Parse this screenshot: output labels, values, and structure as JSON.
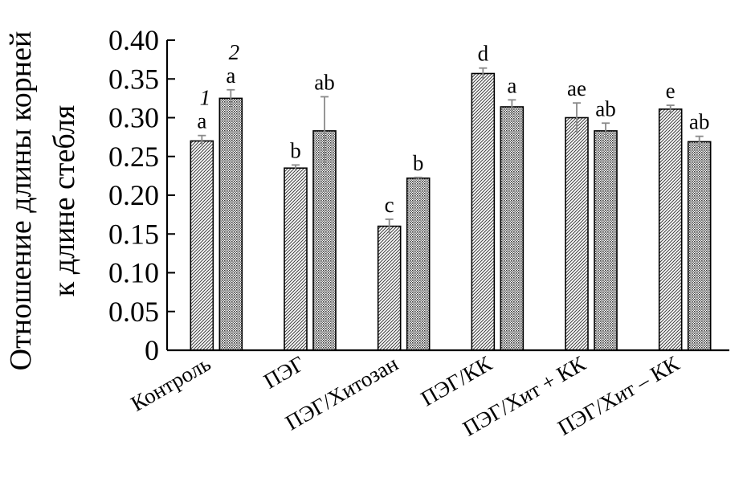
{
  "chart_data": {
    "type": "bar",
    "ylabel": [
      "Отношение длины корней",
      "к длине стебля"
    ],
    "ylim": [
      0,
      0.4
    ],
    "yticks": [
      "0",
      "0.05",
      "0.10",
      "0.15",
      "0.20",
      "0.25",
      "0.30",
      "0.35",
      "0.40"
    ],
    "grid": false,
    "categories": [
      "Контроль",
      "ПЭГ",
      "ПЭГ/Хитозан",
      "ПЭГ/КК",
      "ПЭГ/Хит + КК",
      "ПЭГ/Хит – КК"
    ],
    "series": [
      {
        "name": "1",
        "pattern": "diagonal-hatch",
        "values": [
          0.27,
          0.235,
          0.16,
          0.357,
          0.3,
          0.311
        ],
        "errors": [
          0.007,
          0.004,
          0.009,
          0.007,
          0.019,
          0.005
        ],
        "labels": [
          "a",
          "b",
          "c",
          "d",
          "ae",
          "e"
        ]
      },
      {
        "name": "2",
        "pattern": "dotted",
        "values": [
          0.325,
          0.283,
          0.222,
          0.314,
          0.283,
          0.269
        ],
        "errors": [
          0.011,
          0.044,
          0.001,
          0.009,
          0.01,
          0.007
        ],
        "labels": [
          "a",
          "ab",
          "b",
          "a",
          "ab",
          "ab"
        ]
      }
    ],
    "bar_fill": "#b8b8b8",
    "error_bar_color": "#8a8a8a"
  }
}
